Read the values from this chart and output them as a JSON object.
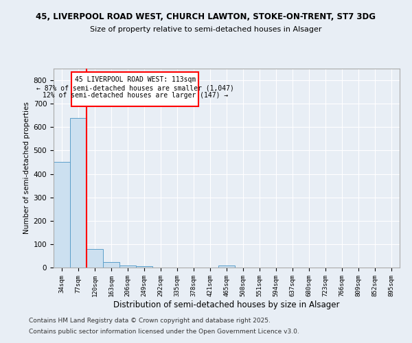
{
  "title1": "45, LIVERPOOL ROAD WEST, CHURCH LAWTON, STOKE-ON-TRENT, ST7 3DG",
  "title2": "Size of property relative to semi-detached houses in Alsager",
  "xlabel": "Distribution of semi-detached houses by size in Alsager",
  "ylabel": "Number of semi-detached properties",
  "categories": [
    "34sqm",
    "77sqm",
    "120sqm",
    "163sqm",
    "206sqm",
    "249sqm",
    "292sqm",
    "335sqm",
    "378sqm",
    "421sqm",
    "465sqm",
    "508sqm",
    "551sqm",
    "594sqm",
    "637sqm",
    "680sqm",
    "723sqm",
    "766sqm",
    "809sqm",
    "852sqm",
    "895sqm"
  ],
  "values": [
    450,
    640,
    80,
    22,
    10,
    5,
    0,
    0,
    0,
    0,
    10,
    0,
    0,
    0,
    0,
    0,
    0,
    0,
    0,
    0,
    0
  ],
  "bar_color": "#cce0f0",
  "bar_edge_color": "#5b9ec9",
  "annotation_title": "45 LIVERPOOL ROAD WEST: 113sqm",
  "annotation_line1": "← 87% of semi-detached houses are smaller (1,047)",
  "annotation_line2": "12% of semi-detached houses are larger (147) →",
  "ylim": [
    0,
    850
  ],
  "yticks": [
    0,
    100,
    200,
    300,
    400,
    500,
    600,
    700,
    800
  ],
  "footnote1": "Contains HM Land Registry data © Crown copyright and database right 2025.",
  "footnote2": "Contains public sector information licensed under the Open Government Licence v3.0.",
  "bg_color": "#e8eef5",
  "plot_bg_color": "#e8eef5",
  "grid_color": "#ffffff"
}
